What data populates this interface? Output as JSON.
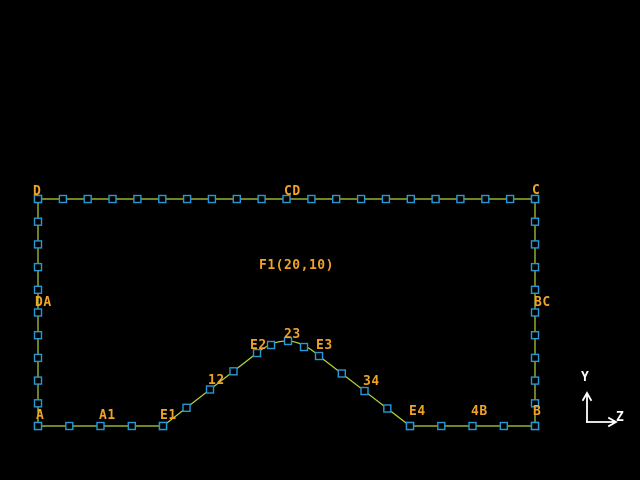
{
  "view": {
    "background": "#000000",
    "colors": {
      "line": "#b3d637",
      "marker": "#2798d4",
      "label": "#f0a327",
      "axis": "#ffffff"
    }
  },
  "geometry_labels": {
    "point_d": "D",
    "line_cd": "CD",
    "point_c": "C",
    "line_da": "DA",
    "line_bc": "BC",
    "surface_f1": "F1(20,10)",
    "point_a": "A",
    "line_a1": "A1",
    "point_e1": "E1",
    "line_12": "12",
    "point_e2": "E2",
    "arc_23": "23",
    "point_e3": "E3",
    "line_34": "34",
    "point_e4": "E4",
    "line_4b": "4B",
    "point_b": "B"
  },
  "axis_triad": {
    "vertical_label": "Y",
    "horizontal_label": "Z"
  }
}
